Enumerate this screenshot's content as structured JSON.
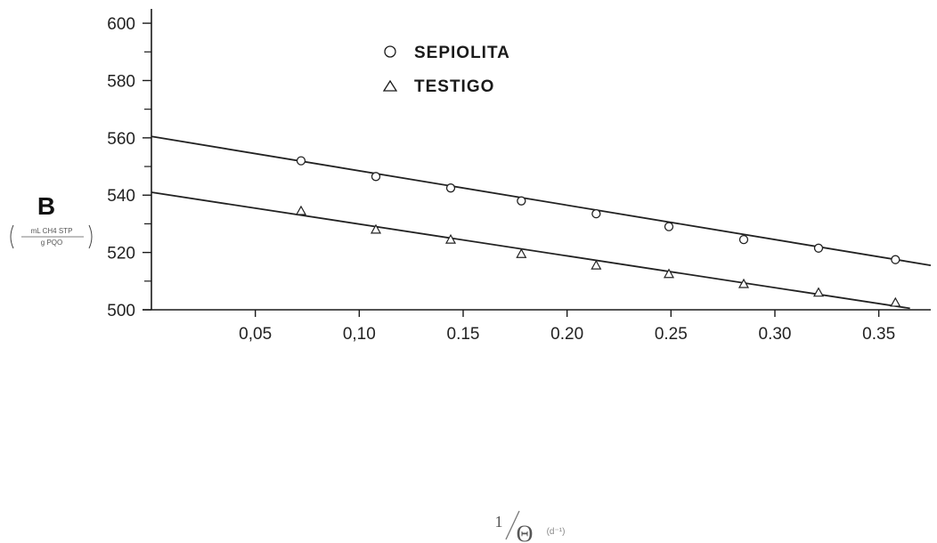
{
  "chart_data": {
    "type": "scatter",
    "title": "",
    "ylabel": "B",
    "ylabel_unit_top": "mL CH4 STP",
    "ylabel_unit_bottom": "g PQO",
    "xlabel_numerator": "1",
    "xlabel_symbol": "Θ",
    "xlabel_unit": "(d⁻¹)",
    "xlim": [
      0,
      0.375
    ],
    "ylim": [
      500,
      605
    ],
    "x_ticks": [
      0.05,
      0.1,
      0.15,
      0.2,
      0.25,
      0.3,
      0.35
    ],
    "x_tick_labels": [
      "0,05",
      "0,10",
      "0.15",
      "0.20",
      "0.25",
      "0.30",
      "0.35"
    ],
    "y_ticks": [
      500,
      520,
      540,
      560,
      580,
      600
    ],
    "y_tick_labels": [
      "500",
      "520",
      "540",
      "560",
      "580",
      "600"
    ],
    "grid": false,
    "legend_position": "top-center",
    "series": [
      {
        "name": "SEPIOLITA",
        "marker": "circle",
        "x": [
          0.072,
          0.108,
          0.144,
          0.178,
          0.214,
          0.249,
          0.285,
          0.321,
          0.358
        ],
        "y": [
          552,
          546.5,
          542.5,
          538,
          533.5,
          529,
          524.5,
          521.5,
          517.5
        ],
        "fit": {
          "x": [
            0,
            0.375
          ],
          "y": [
            560.5,
            515.5
          ]
        }
      },
      {
        "name": "TESTIGO",
        "marker": "triangle",
        "x": [
          0.072,
          0.108,
          0.144,
          0.178,
          0.214,
          0.249,
          0.285,
          0.321,
          0.358
        ],
        "y": [
          534.5,
          528,
          524.5,
          519.5,
          515.5,
          512.5,
          509,
          506,
          502.5
        ],
        "fit": {
          "x": [
            0,
            0.365
          ],
          "y": [
            541,
            500.5
          ]
        }
      }
    ]
  }
}
